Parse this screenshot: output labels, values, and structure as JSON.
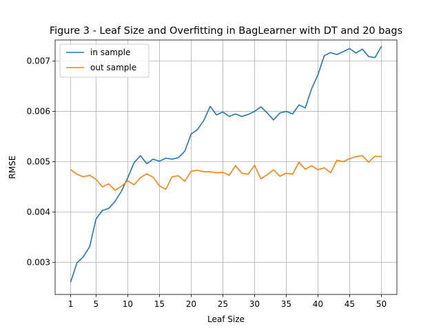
{
  "chart_data": {
    "type": "line",
    "title": "Figure 3 - Leaf Size and Overfitting in BagLearner with DT and 20 bags",
    "xlabel": "Leaf Size",
    "ylabel": "RMSE",
    "xlim": [
      -1.45,
      52.45
    ],
    "ylim": [
      0.00236,
      0.00742
    ],
    "xticks": [
      1,
      5,
      10,
      15,
      20,
      25,
      30,
      35,
      40,
      45,
      50
    ],
    "yticks": [
      0.003,
      0.004,
      0.005,
      0.006,
      0.007
    ],
    "ytick_labels": [
      "0.003",
      "0.004",
      "0.005",
      "0.006",
      "0.007"
    ],
    "grid": true,
    "legend_position": "upper-left",
    "x": [
      1,
      2,
      3,
      4,
      5,
      6,
      7,
      8,
      9,
      10,
      11,
      12,
      13,
      14,
      15,
      16,
      17,
      18,
      19,
      20,
      21,
      22,
      23,
      24,
      25,
      26,
      27,
      28,
      29,
      30,
      31,
      32,
      33,
      34,
      35,
      36,
      37,
      38,
      39,
      40,
      41,
      42,
      43,
      44,
      45,
      46,
      47,
      48,
      49,
      50
    ],
    "series": [
      {
        "name": "in sample",
        "color": "#1f77b4",
        "values": [
          0.00261,
          0.00299,
          0.00311,
          0.00331,
          0.00386,
          0.00403,
          0.00407,
          0.00421,
          0.00441,
          0.00468,
          0.00498,
          0.00512,
          0.00496,
          0.00505,
          0.00501,
          0.00507,
          0.00505,
          0.00508,
          0.00521,
          0.00555,
          0.00564,
          0.00582,
          0.0061,
          0.00593,
          0.00599,
          0.0059,
          0.00595,
          0.0059,
          0.00594,
          0.006,
          0.00609,
          0.00597,
          0.00583,
          0.00597,
          0.006,
          0.00595,
          0.00613,
          0.00607,
          0.00645,
          0.00673,
          0.00711,
          0.00717,
          0.00713,
          0.00719,
          0.00725,
          0.00716,
          0.00724,
          0.00709,
          0.00707,
          0.00729
        ]
      },
      {
        "name": "out sample",
        "color": "#ff7f0e",
        "values": [
          0.00484,
          0.00475,
          0.0047,
          0.00473,
          0.00465,
          0.0045,
          0.00456,
          0.00443,
          0.00451,
          0.00462,
          0.00454,
          0.00468,
          0.00476,
          0.00469,
          0.00452,
          0.00445,
          0.0047,
          0.00472,
          0.00461,
          0.00481,
          0.00483,
          0.0048,
          0.0048,
          0.00478,
          0.00479,
          0.00473,
          0.00492,
          0.00477,
          0.00475,
          0.00493,
          0.00466,
          0.00474,
          0.00484,
          0.00471,
          0.00477,
          0.00475,
          0.00499,
          0.00485,
          0.00492,
          0.00484,
          0.00488,
          0.00478,
          0.00503,
          0.005,
          0.00506,
          0.0051,
          0.00512,
          0.00499,
          0.00511,
          0.0051
        ]
      }
    ]
  }
}
